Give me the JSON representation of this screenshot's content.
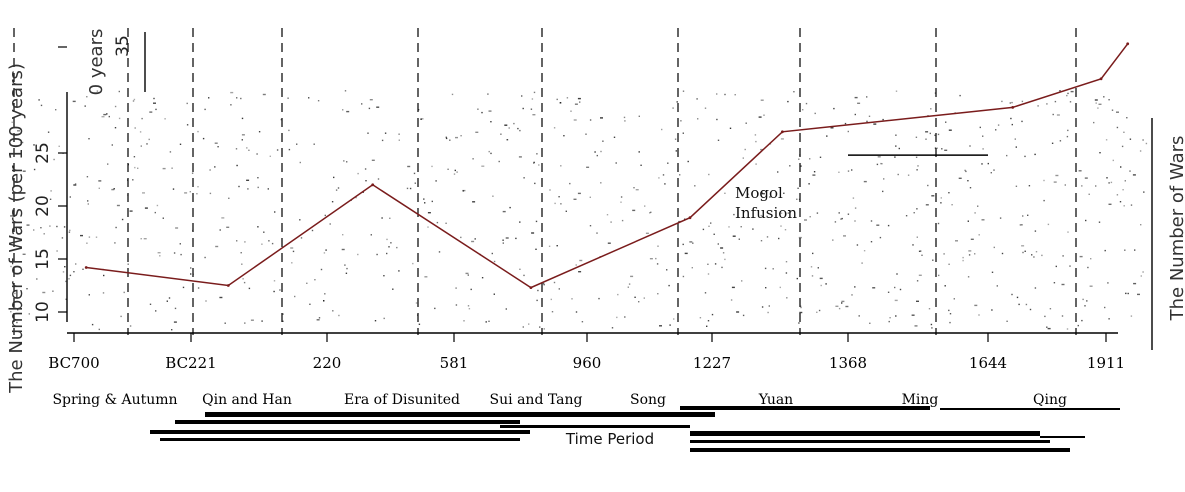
{
  "chart_data": {
    "type": "line",
    "title": "",
    "xlabel": "Time Period",
    "ylabel": "The Number of Wars (per 100 years)",
    "ylabel_right": "The Number of Wars",
    "ylim": [
      9,
      37
    ],
    "yticks": [
      10,
      15,
      20,
      25,
      35
    ],
    "ytick_labels": [
      "10",
      "15",
      "20",
      "25",
      "35"
    ],
    "ylabel_top_fragment": "0 years",
    "xticks": [
      "BC700",
      "BC221",
      "220",
      "581",
      "960",
      "1227",
      "1368",
      "1644",
      "1911"
    ],
    "xtick_values": [
      -700,
      -221,
      220,
      581,
      960,
      1227,
      1368,
      1644,
      1911
    ],
    "periods": [
      "Spring & Autumn",
      "Qin and Han",
      "Era of Disunited",
      "Sui and Tang",
      "Song",
      "Yuan",
      "Ming",
      "Qing"
    ],
    "annotation": "Mogol Infusion",
    "series": [
      {
        "x": [
          -650,
          -100,
          350,
          800,
          1180,
          1300,
          1700,
          1900,
          1960
        ],
        "values": [
          14.2,
          12.5,
          22,
          12.3,
          18.9,
          27,
          29.3,
          32,
          35.3
        ]
      }
    ],
    "segment": {
      "x": [
        1368,
        1644
      ],
      "value": 24.8
    },
    "grid": false,
    "legend": "none"
  }
}
